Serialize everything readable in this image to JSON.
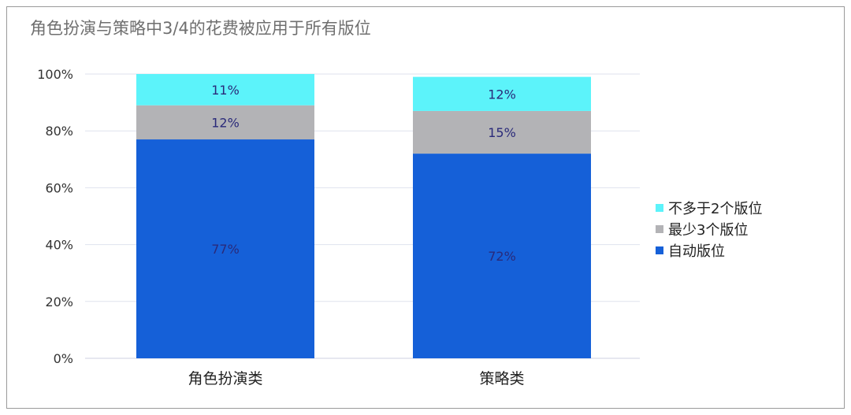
{
  "chart_data": {
    "type": "bar",
    "stacked": true,
    "title": "角色扮演与策略中3/4的花费被应用于所有版位",
    "categories": [
      "角色扮演类",
      "策略类"
    ],
    "series": [
      {
        "name": "自动版位",
        "values": [
          77,
          72
        ],
        "labels": [
          "77%",
          "72%"
        ],
        "color": "#1560d8"
      },
      {
        "name": "最少3个版位",
        "values": [
          12,
          15
        ],
        "labels": [
          "12%",
          "15%"
        ],
        "color": "#b3b3b6"
      },
      {
        "name": "不多于2个版位",
        "values": [
          11,
          12
        ],
        "labels": [
          "11%",
          "12%"
        ],
        "color": "#5cf3fa"
      }
    ],
    "y_ticks": [
      "0%",
      "20%",
      "40%",
      "60%",
      "80%",
      "100%"
    ],
    "ylim": [
      0,
      100
    ],
    "grid": true,
    "legend_position": "right"
  },
  "legend": [
    {
      "label": "不多于2个版位",
      "color": "#5cf3fa"
    },
    {
      "label": "最少3个版位",
      "color": "#b3b3b6"
    },
    {
      "label": "自动版位",
      "color": "#1560d8"
    }
  ]
}
